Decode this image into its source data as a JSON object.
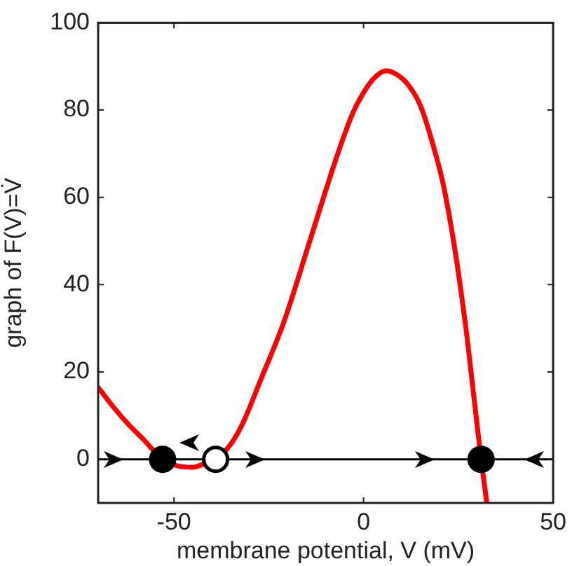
{
  "chart_data": {
    "type": "line",
    "xlabel": "membrane potential, V (mV)",
    "ylabel": "graph of F(V)=V̇",
    "xlim": [
      -70,
      50
    ],
    "ylim": [
      -10,
      100
    ],
    "xticks": [
      -50,
      0,
      50
    ],
    "yticks": [
      0,
      20,
      40,
      60,
      80,
      100
    ],
    "legend": false,
    "ref_lines": [
      {
        "axis": "y",
        "value": 0,
        "color": "#000000"
      }
    ],
    "series": [
      {
        "type": "line",
        "color": "#ff0000",
        "x": [
          -70,
          -66,
          -62,
          -58,
          -53,
          -49,
          -45,
          -42,
          -39,
          -35,
          -32,
          -27,
          -21,
          -14,
          -7,
          -3,
          0,
          3,
          6,
          9,
          12,
          15,
          18,
          21,
          24,
          27,
          29,
          31,
          32.5
        ],
        "values": [
          16.5,
          12,
          8,
          4.5,
          0,
          -1.5,
          -1.8,
          -1,
          0,
          3.5,
          8,
          18.5,
          31.5,
          50.5,
          69.5,
          79,
          84,
          87.5,
          89,
          88,
          85.5,
          81,
          73,
          63,
          48.5,
          30,
          15,
          0,
          -10
        ]
      },
      {
        "type": "scatter",
        "marker": "circle",
        "color": "#000000",
        "x": [
          -53,
          31
        ],
        "values": [
          0,
          0
        ]
      },
      {
        "type": "scatter",
        "marker": "circle",
        "color": "#ffffff",
        "x": [
          -39
        ],
        "values": [
          0
        ]
      }
    ]
  }
}
